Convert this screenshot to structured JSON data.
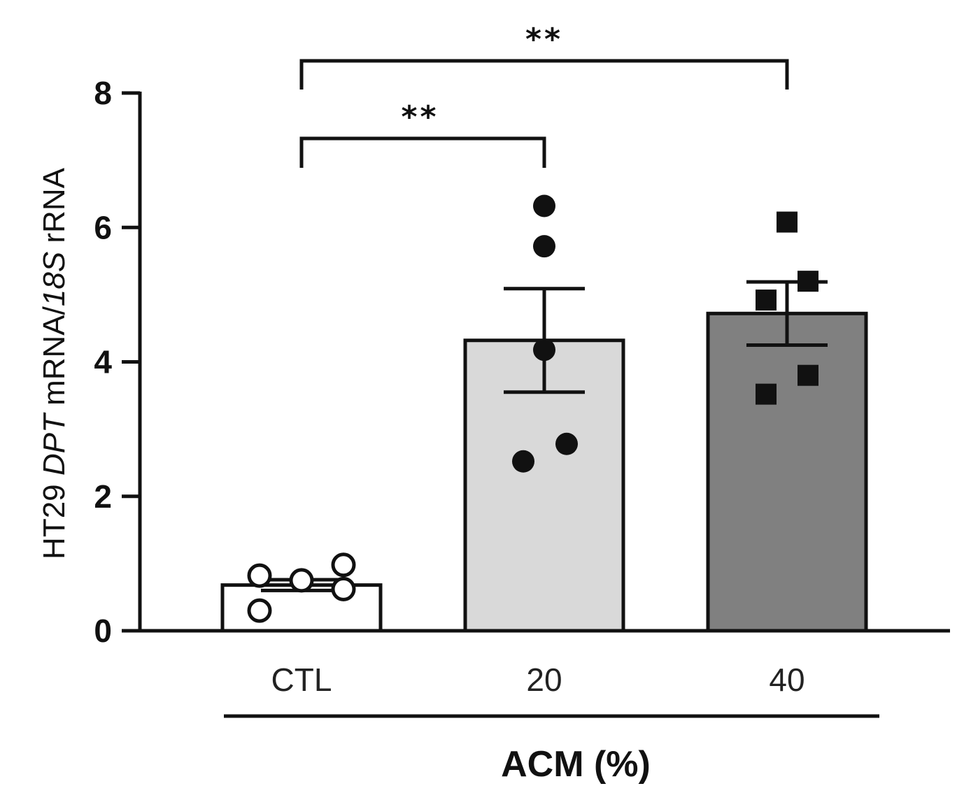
{
  "chart_data": {
    "type": "bar",
    "categories": [
      "CTL",
      "20",
      "40"
    ],
    "xlabel": "ACM  (%)",
    "ylabel": {
      "prefix": "HT29 ",
      "italic_gene": "DPT",
      "middle": " mRNA/",
      "italic_ref": "18S",
      "suffix": " rRNA"
    },
    "ylim": [
      0,
      8
    ],
    "yticks": [
      "0",
      "2",
      "4",
      "6",
      "8"
    ],
    "series": [
      {
        "category": "CTL",
        "mean": 0.68,
        "sem": 0.08,
        "fill": "#ffffff",
        "marker": "open-circle",
        "points": [
          0.82,
          0.75,
          0.3,
          0.98,
          0.62
        ]
      },
      {
        "category": "20",
        "mean": 4.32,
        "sem": 0.77,
        "fill": "#d9d9d9",
        "marker": "filled-circle",
        "points": [
          6.32,
          5.72,
          4.18,
          2.52,
          2.78
        ]
      },
      {
        "category": "40",
        "mean": 4.72,
        "sem": 0.47,
        "fill": "#808080",
        "marker": "filled-square",
        "points": [
          6.08,
          4.92,
          3.52,
          5.2,
          3.8
        ]
      }
    ],
    "significance": [
      {
        "from": "CTL",
        "to": "20",
        "label": "**"
      },
      {
        "from": "CTL",
        "to": "40",
        "label": "**"
      }
    ]
  }
}
